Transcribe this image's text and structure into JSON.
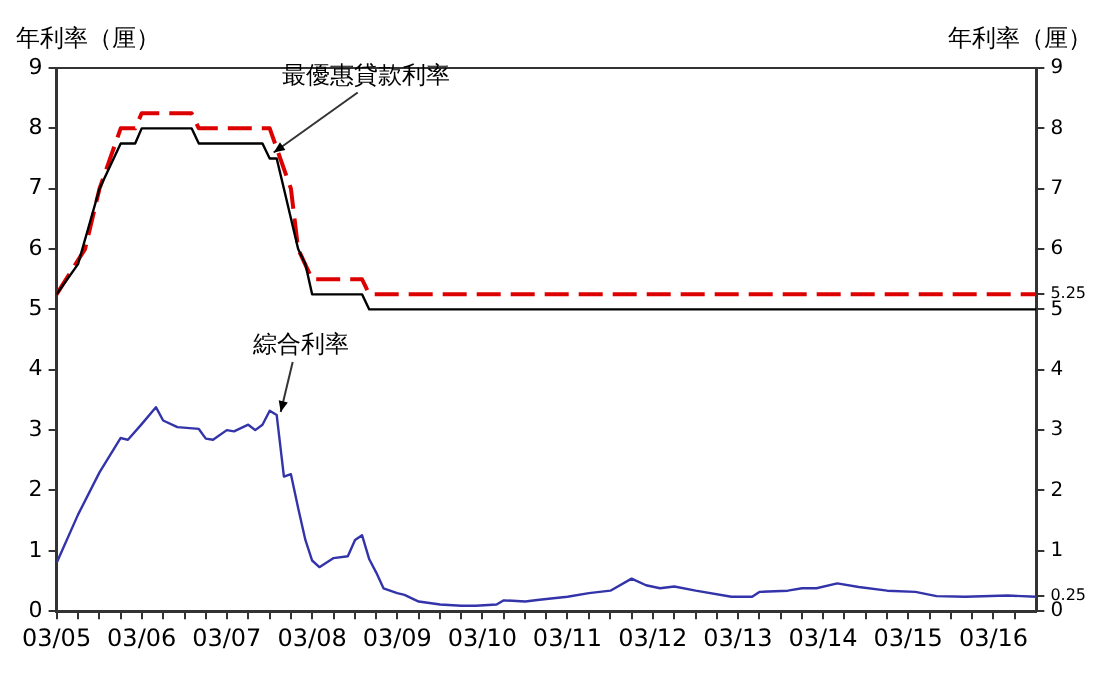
{
  "chart_data": {
    "type": "line",
    "ylabel": "年利率（厘）",
    "y2label": "年利率（厘）",
    "xlim": [
      "2005-03",
      "2016-09"
    ],
    "xticks": [
      {
        "value": "2005-03",
        "label": "03/05"
      },
      {
        "value": "2005-06",
        "label": null
      },
      {
        "value": "2005-09",
        "label": null
      },
      {
        "value": "2005-12",
        "label": null
      },
      {
        "value": "2006-03",
        "label": "03/06"
      },
      {
        "value": "2006-06",
        "label": null
      },
      {
        "value": "2006-09",
        "label": null
      },
      {
        "value": "2006-12",
        "label": null
      },
      {
        "value": "2007-03",
        "label": "03/07"
      },
      {
        "value": "2007-06",
        "label": null
      },
      {
        "value": "2007-09",
        "label": null
      },
      {
        "value": "2007-12",
        "label": null
      },
      {
        "value": "2008-03",
        "label": "03/08"
      },
      {
        "value": "2008-06",
        "label": null
      },
      {
        "value": "2008-09",
        "label": null
      },
      {
        "value": "2008-12",
        "label": null
      },
      {
        "value": "2009-03",
        "label": "03/09"
      },
      {
        "value": "2009-06",
        "label": null
      },
      {
        "value": "2009-09",
        "label": null
      },
      {
        "value": "2009-12",
        "label": null
      },
      {
        "value": "2010-03",
        "label": "03/10"
      },
      {
        "value": "2010-06",
        "label": null
      },
      {
        "value": "2010-09",
        "label": null
      },
      {
        "value": "2010-12",
        "label": null
      },
      {
        "value": "2011-03",
        "label": "03/11"
      },
      {
        "value": "2011-06",
        "label": null
      },
      {
        "value": "2011-09",
        "label": null
      },
      {
        "value": "2011-12",
        "label": null
      },
      {
        "value": "2012-03",
        "label": "03/12"
      },
      {
        "value": "2012-06",
        "label": null
      },
      {
        "value": "2012-09",
        "label": null
      },
      {
        "value": "2012-12",
        "label": null
      },
      {
        "value": "2013-03",
        "label": "03/13"
      },
      {
        "value": "2013-06",
        "label": null
      },
      {
        "value": "2013-09",
        "label": null
      },
      {
        "value": "2013-12",
        "label": null
      },
      {
        "value": "2014-03",
        "label": "03/14"
      },
      {
        "value": "2014-06",
        "label": null
      },
      {
        "value": "2014-09",
        "label": null
      },
      {
        "value": "2014-12",
        "label": null
      },
      {
        "value": "2015-03",
        "label": "03/15"
      },
      {
        "value": "2015-06",
        "label": null
      },
      {
        "value": "2015-09",
        "label": null
      },
      {
        "value": "2015-12",
        "label": null
      },
      {
        "value": "2016-03",
        "label": "03/16"
      },
      {
        "value": "2016-06",
        "label": null
      }
    ],
    "ylim": [
      0,
      9
    ],
    "yticks": [
      0,
      1,
      2,
      3,
      4,
      5,
      6,
      7,
      8,
      9
    ],
    "y2lim": [
      0,
      9
    ],
    "y2ticks": [
      0,
      0.25,
      1,
      2,
      3,
      4,
      5,
      5.25,
      6,
      7,
      8,
      9
    ],
    "grid": false,
    "legend": false,
    "marker": "none",
    "series": [
      {
        "color": "#000000",
        "line_style": "solid",
        "x": [
          "2005-03",
          "2005-06",
          "2005-09",
          "2005-12",
          "2006-02",
          "2006-03",
          "2006-10",
          "2006-11",
          "2007-08",
          "2007-09",
          "2007-10",
          "2007-11",
          "2008-01",
          "2008-02",
          "2008-03",
          "2008-10",
          "2008-11",
          "2016-09"
        ],
        "values": [
          5.25,
          5.75,
          7,
          7.75,
          7.75,
          8,
          8,
          7.75,
          7.75,
          7.5,
          7.5,
          7,
          6,
          5.75,
          5.25,
          5.25,
          5,
          5
        ]
      },
      {
        "color": "#dd0000",
        "line_style": "dashed",
        "x": [
          "2005-03",
          "2005-07",
          "2005-09",
          "2005-12",
          "2006-02",
          "2006-03",
          "2006-10",
          "2006-11",
          "2007-09",
          "2007-12",
          "2008-01",
          "2008-03",
          "2008-10",
          "2008-11",
          "2016-09"
        ],
        "values": [
          5.25,
          6,
          7,
          8,
          8,
          8.25,
          8.25,
          8,
          8,
          7,
          6,
          5.5,
          5.5,
          5.25,
          5.25
        ]
      },
      {
        "color": "#3333aa",
        "line_style": "solid",
        "x": [
          "2005-03",
          "2005-06",
          "2005-09",
          "2005-12",
          "2006-01",
          "2006-03",
          "2006-05",
          "2006-06",
          "2006-08",
          "2006-11",
          "2006-12",
          "2007-01",
          "2007-03",
          "2007-04",
          "2007-06",
          "2007-07",
          "2007-08",
          "2007-09",
          "2007-10",
          "2007-11",
          "2007-12",
          "2008-01",
          "2008-02",
          "2008-03",
          "2008-04",
          "2008-06",
          "2008-08",
          "2008-09",
          "2008-10",
          "2008-11",
          "2008-12",
          "2009-01",
          "2009-03",
          "2009-04",
          "2009-06",
          "2009-09",
          "2009-12",
          "2010-02",
          "2010-05",
          "2010-06",
          "2010-09",
          "2010-11",
          "2011-03",
          "2011-06",
          "2011-09",
          "2011-12",
          "2012-02",
          "2012-04",
          "2012-06",
          "2012-09",
          "2013-02",
          "2013-05",
          "2013-06",
          "2013-10",
          "2013-12",
          "2014-02",
          "2014-05",
          "2014-08",
          "2014-12",
          "2015-04",
          "2015-07",
          "2015-11",
          "2016-05",
          "2016-09"
        ],
        "values": [
          0.8,
          1.6,
          2.3,
          2.87,
          2.84,
          3.1,
          3.38,
          3.16,
          3.05,
          3.02,
          2.86,
          2.84,
          3,
          2.98,
          3.09,
          3,
          3.09,
          3.32,
          3.25,
          2.23,
          2.27,
          1.71,
          1.18,
          0.84,
          0.73,
          0.88,
          0.91,
          1.18,
          1.26,
          0.86,
          0.64,
          0.38,
          0.3,
          0.27,
          0.16,
          0.11,
          0.09,
          0.09,
          0.11,
          0.18,
          0.16,
          0.19,
          0.24,
          0.3,
          0.34,
          0.54,
          0.43,
          0.38,
          0.41,
          0.34,
          0.24,
          0.24,
          0.32,
          0.34,
          0.38,
          0.38,
          0.46,
          0.4,
          0.34,
          0.32,
          0.25,
          0.24,
          0.26,
          0.24
        ]
      }
    ],
    "annotations": [
      {
        "text": "最優惠貸款利率",
        "x": "2007-09",
        "y": 7.5
      },
      {
        "text": "綜合利率",
        "x": "2007-10",
        "y": 3.2
      }
    ]
  }
}
